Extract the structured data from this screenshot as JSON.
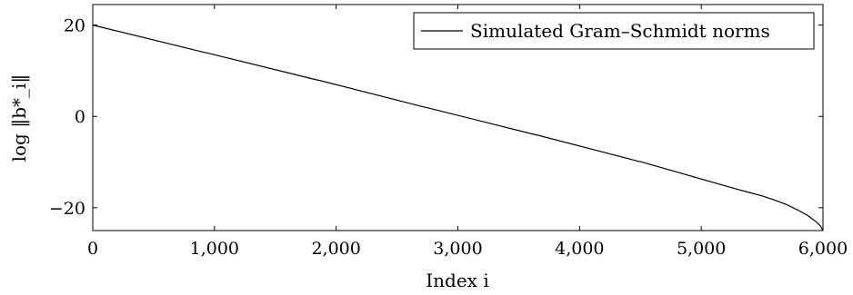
{
  "chart_data": {
    "type": "line",
    "xlabel": "Index i",
    "ylabel": "log ‖b*_i‖",
    "xlim": [
      0,
      6000
    ],
    "ylim": [
      -25,
      24.5
    ],
    "x_ticks": [
      0,
      1000,
      2000,
      3000,
      4000,
      5000,
      6000
    ],
    "x_tick_labels": [
      "0",
      "1,000",
      "2,000",
      "3,000",
      "4,000",
      "5,000",
      "6,000"
    ],
    "y_ticks": [
      -20,
      0,
      20
    ],
    "y_tick_labels": [
      "−20",
      "0",
      "20"
    ],
    "grid": false,
    "legend_position": "top-right",
    "series": [
      {
        "name": "Simulated Gram–Schmidt norms",
        "color": "#000000",
        "x": [
          0,
          920,
          940,
          1840,
          1860,
          2730,
          2750,
          3620,
          3640,
          4480,
          4500,
          5300,
          5400,
          5500,
          5600,
          5700,
          5800,
          5880,
          5940,
          5980,
          6000
        ],
        "y": [
          20,
          14,
          13.9,
          8,
          7.9,
          2,
          1.9,
          -3.9,
          -4.0,
          -9.8,
          -9.9,
          -16,
          -16.7,
          -17.4,
          -18.3,
          -19.3,
          -20.6,
          -21.8,
          -23.0,
          -24.0,
          -25.0
        ]
      }
    ]
  }
}
